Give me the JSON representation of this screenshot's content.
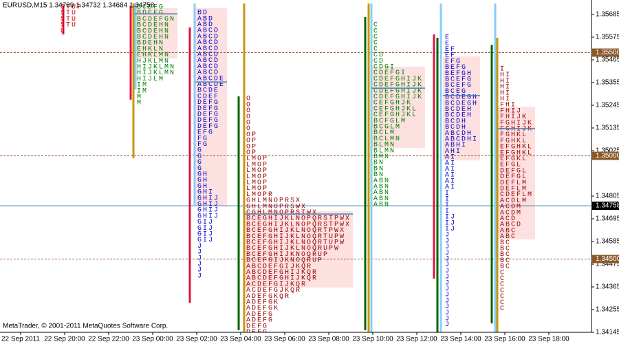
{
  "chart_data": {
    "type": "market-profile",
    "title": "EURUSD,M15  1.34709 1.34732 1.34684 1.34758",
    "footer": "MetaTrader, © 2001-2011 MetaQuotes Software Corp.",
    "ylim": [
      1.34145,
      1.35755
    ],
    "yticks": [
      1.35685,
      1.35575,
      1.35465,
      1.35355,
      1.35245,
      1.35135,
      1.35025,
      1.34805,
      1.34695,
      1.34585,
      1.34475,
      1.34365,
      1.34255,
      1.34145
    ],
    "categories": [
      "22 Sep 2011",
      "22 Sep 20:00",
      "22 Sep 22:00",
      "23 Sep 00:00",
      "23 Sep 02:00",
      "23 Sep 04:00",
      "23 Sep 06:00",
      "23 Sep 08:00",
      "23 Sep 10:00",
      "23 Sep 12:00",
      "23 Sep 14:00",
      "23 Sep 16:00",
      "23 Sep 18:00"
    ],
    "levels": [
      {
        "value": 1.355,
        "label": "1.35500"
      },
      {
        "value": 1.35,
        "label": "1.35000"
      },
      {
        "value": 1.345,
        "label": "1.34500"
      }
    ],
    "level_color": "#a0522d",
    "current_price": 1.34758,
    "current_color": "#4682b4",
    "bars": [
      {
        "color": "#e0103a",
        "high": 1.35728,
        "low": 1.35588
      },
      {
        "color": "#e0103a",
        "high": 1.35728,
        "low": 1.35272
      },
      {
        "color": "#c8960a",
        "high": 1.35738,
        "low": 1.34988
      },
      {
        "color": "#87cefa",
        "high": 1.35738,
        "low": 1.35322
      },
      {
        "color": "#e0103a",
        "high": 1.35622,
        "low": 1.34288
      },
      {
        "color": "#87cefa",
        "high": 1.35738,
        "low": 1.34755
      },
      {
        "color": "#006400",
        "high": 1.35288,
        "low": 1.34155
      },
      {
        "color": "#c8960a",
        "high": 1.35738,
        "low": 1.34145
      },
      {
        "color": "#006400",
        "high": 1.35672,
        "low": 1.34155
      },
      {
        "color": "#87cefa",
        "high": 1.35738,
        "low": 1.34145
      },
      {
        "color": "#c8960a",
        "high": 1.35738,
        "low": 1.34145
      },
      {
        "color": "#e0103a",
        "high": 1.35588,
        "low": 1.34405
      },
      {
        "color": "#006400",
        "high": 1.35572,
        "low": 1.34145
      },
      {
        "color": "#87cefa",
        "high": 1.35738,
        "low": 1.34145
      },
      {
        "color": "#006400",
        "high": 1.35538,
        "low": 1.34188
      },
      {
        "color": "#87cefa",
        "high": 1.35738,
        "low": 1.34145
      },
      {
        "color": "#c8960a",
        "high": 1.35572,
        "low": 1.34145
      }
    ],
    "profiles": [
      {
        "color": "#cc0000",
        "high": 1.35722,
        "letters": [
          "STUP",
          "STU",
          "STU",
          "STU",
          "U"
        ]
      },
      {
        "color": "#008000",
        "high": 1.35722,
        "value_area": [
          1.35715,
          1.35472
        ],
        "poc": 1.35688,
        "letters": [
          "BCDFG",
          "BDEFG",
          "BCDEFGN",
          "BCDEHN",
          "BCDEHN",
          "BCDEHN",
          "BDEHN",
          "EHKLN",
          "EHKLMN",
          "HJKLMN",
          "HIJKLMN",
          "HIJKLMN",
          "HIJLM",
          "IM",
          "IM",
          "M",
          "M"
        ]
      },
      {
        "color": "#0000cc",
        "high": 1.35695,
        "value_area": [
          1.35715,
          1.34755
        ],
        "poc": 1.35358,
        "letters": [
          "BD",
          "ABD",
          "ABD",
          "ABCD",
          "ABCD",
          "ABCD",
          "ABCD",
          "ABCD",
          "ABCD",
          "ABCD",
          "ABCD",
          "ABCDE",
          "ABCDE",
          "BCDE",
          "CDEF",
          "DEFG",
          "DEFG",
          "DEFG",
          "DEFG",
          "DEFG",
          "EFG",
          "FG",
          "FG",
          "G",
          "G",
          "G",
          "G",
          "GH",
          "GH",
          "GH",
          "GHI",
          "GHIJ",
          "GHIJ",
          "GHIJ",
          "GHIJ",
          "GIJ",
          "GIJ",
          "GIJ",
          "GIJ",
          "J",
          "J",
          "J",
          "J",
          "J",
          "J"
        ]
      },
      {
        "color": "#990000",
        "high": 1.35278,
        "value_area": [
          1.34732,
          1.34362
        ],
        "poc": 1.34718,
        "letters": [
          "O",
          "O",
          "O",
          "O",
          "O",
          "O",
          "OP",
          "OP",
          "OP",
          "OP",
          "LMOP",
          "LMOP",
          "LMOP",
          "LMOP",
          "LMOP",
          "LMOP",
          "LMOPR",
          "GHLMNOPRSX",
          "GHLMNOPRSWX",
          "CGHLMNOPRSTWX",
          "BCEGHIJKLNOPQRSTPWX",
          "BCEGHIJKLNOPQRSTPWX",
          "BCEFGHIJKLNOQRTPWX",
          "BCEFGHIJKLNOQRTUPW",
          "BCEFGHIJKLNOQRTUPW",
          "BCEFGHIJKLNOQRUPW",
          "BCEFGHIJKNOQRUP",
          "BCEFGIJKNOQRUP",
          "ABCDEFGIJKQR",
          "ABCDEFGHIJKQR",
          "ABCDEFGHIJKQR",
          "ACDEFGIJKQR",
          "ACDEFGJKQR",
          "ADEFGKQR",
          "ADEFGK",
          "ADEFGK",
          "ADEFG",
          "ADEFG",
          "DEFG",
          "DEFG"
        ]
      },
      {
        "color": "#008000",
        "high": 1.35635,
        "value_area": [
          1.35432,
          1.35038
        ],
        "poc": 1.35328,
        "letters": [
          "C",
          "C",
          "C",
          "C",
          "C",
          "CD",
          "CD",
          "CDGI",
          "CDEFGI",
          "CDEFGHIJK",
          "CDEFGHIJK",
          "CDEFGHIJK",
          "CDEFGHIJK",
          "CEFGHJK",
          "CEFGHJKL",
          "CEFGHJKL",
          "BCFGLM",
          "BCGLM",
          "BCLM",
          "BCLMN",
          "BLMN",
          "BLMN",
          "BMN",
          "BN",
          "BN",
          "BN",
          "ABN",
          "ABN",
          "ABN",
          "ABN",
          "ABN"
        ]
      },
      {
        "color": "#0000cc",
        "high": 1.35575,
        "value_area": [
          1.35482,
          1.34978
        ],
        "poc": 1.35292,
        "letters": [
          "E",
          "E",
          "EF",
          "EF",
          "EFG",
          "BEFG",
          "BEFGH",
          "BCEFG",
          "BCEFG",
          "BCEG",
          "BCDEGH",
          "BCDEGH",
          "BCDEH",
          "BCDEH",
          "BCDH",
          "BCDH",
          "ABCDH",
          "ABCDHI",
          "ABHI",
          "AHI",
          "AI",
          "AI",
          "AI",
          "AI",
          "AI",
          "AI",
          "I",
          "I",
          "I",
          "I",
          "IJ",
          "IJ",
          "IJ",
          "J",
          "J",
          "J",
          "J",
          "J",
          "J",
          "J",
          "J",
          "J",
          "J",
          "J",
          "J",
          "J",
          "J",
          "J",
          "J"
        ]
      },
      {
        "color": "#990000",
        "high": 1.35422,
        "value_area": [
          1.35238,
          1.34595
        ],
        "poc": 1.35132,
        "letters": [
          "I",
          "HI",
          "HI",
          "HI",
          "HI",
          "HI",
          "FHI",
          "FHIJ",
          "FHIJK",
          "FGHIJK",
          "FGHIJK",
          "FGHKL",
          "FGHKL",
          "EFGHKL",
          "EFGHKL",
          "EFGKL",
          "EFGL",
          "DEFGL",
          "DEFGL",
          "DEFLM",
          "DEFLM",
          "CDEFLM",
          "ACDLM",
          "ACDM",
          "ACDM",
          "ACD",
          "ABCD",
          "ABC",
          "ABC",
          "BC",
          "BC",
          "BC",
          "BC",
          "BC",
          "C",
          "C",
          "C",
          "C",
          "C",
          "C",
          "C"
        ]
      }
    ]
  }
}
